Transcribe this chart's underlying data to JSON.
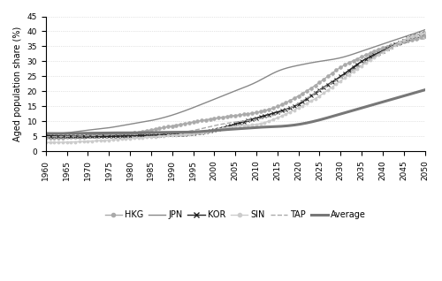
{
  "title": "",
  "ylabel": "Aged population share (%)",
  "xlabel": "",
  "ylim": [
    0,
    45
  ],
  "xlim": [
    1960,
    2050
  ],
  "xticks": [
    1960,
    1965,
    1970,
    1975,
    1980,
    1985,
    1990,
    1995,
    2000,
    2005,
    2010,
    2015,
    2020,
    2025,
    2030,
    2035,
    2040,
    2045,
    2050
  ],
  "yticks": [
    0,
    5,
    10,
    15,
    20,
    25,
    30,
    35,
    40,
    45
  ],
  "background_color": "#ffffff",
  "series": {
    "HKG": {
      "color": "#aaaaaa",
      "linestyle": "-",
      "linewidth": 1.0,
      "marker": "o",
      "markersize": 2.5,
      "data": {
        "1960": 4.5,
        "1965": 4.7,
        "1970": 5.0,
        "1975": 5.5,
        "1980": 6.0,
        "1985": 7.2,
        "1990": 8.5,
        "1995": 9.8,
        "2000": 11.0,
        "2005": 12.0,
        "2010": 13.0,
        "2015": 15.0,
        "2020": 18.5,
        "2025": 23.0,
        "2030": 28.0,
        "2035": 31.5,
        "2040": 34.5,
        "2045": 36.5,
        "2050": 38.5
      }
    },
    "JPN": {
      "color": "#888888",
      "linestyle": "-",
      "linewidth": 1.0,
      "marker": null,
      "markersize": 0,
      "data": {
        "1960": 5.8,
        "1965": 6.2,
        "1970": 7.1,
        "1975": 7.9,
        "1980": 9.1,
        "1985": 10.3,
        "1990": 12.1,
        "1995": 14.6,
        "2000": 17.4,
        "2005": 20.2,
        "2010": 23.1,
        "2015": 26.7,
        "2020": 28.7,
        "2025": 30.0,
        "2030": 31.2,
        "2035": 33.4,
        "2040": 35.8,
        "2045": 38.1,
        "2050": 40.5
      }
    },
    "KOR": {
      "color": "#222222",
      "linestyle": "-",
      "linewidth": 1.0,
      "marker": "x",
      "markersize": 3.5,
      "data": {
        "1960": 5.3,
        "1965": 5.1,
        "1970": 5.1,
        "1975": 5.0,
        "1980": 5.2,
        "1985": 5.4,
        "1990": 5.7,
        "1995": 6.0,
        "2000": 7.2,
        "2005": 9.1,
        "2010": 11.1,
        "2015": 13.1,
        "2020": 15.8,
        "2025": 20.5,
        "2030": 25.0,
        "2035": 30.0,
        "2040": 33.5,
        "2045": 37.0,
        "2050": 39.5
      }
    },
    "SIN": {
      "color": "#cccccc",
      "linestyle": "-",
      "linewidth": 1.0,
      "marker": "o",
      "markersize": 2.0,
      "data": {
        "1960": 3.0,
        "1965": 3.1,
        "1970": 3.4,
        "1975": 3.8,
        "1980": 4.3,
        "1985": 4.8,
        "1990": 5.4,
        "1995": 6.0,
        "2000": 7.1,
        "2005": 8.4,
        "2010": 9.0,
        "2015": 11.2,
        "2020": 14.5,
        "2025": 18.5,
        "2030": 23.5,
        "2035": 28.5,
        "2040": 33.0,
        "2045": 37.0,
        "2050": 39.5
      }
    },
    "TAP": {
      "color": "#aaaaaa",
      "linestyle": "--",
      "linewidth": 1.0,
      "marker": null,
      "markersize": 0,
      "data": {
        "1960": 4.9,
        "1965": 5.0,
        "1970": 5.2,
        "1975": 5.5,
        "1980": 6.0,
        "1985": 6.2,
        "1990": 6.2,
        "1995": 7.0,
        "2000": 8.6,
        "2005": 9.8,
        "2010": 10.7,
        "2015": 12.5,
        "2020": 16.1,
        "2025": 20.4,
        "2030": 24.5,
        "2035": 29.0,
        "2040": 33.2,
        "2045": 36.2,
        "2050": 37.5
      }
    },
    "Average": {
      "color": "#777777",
      "linestyle": "-",
      "linewidth": 2.2,
      "marker": null,
      "markersize": 0,
      "data": {
        "1960": 6.0,
        "1965": 6.0,
        "1970": 6.1,
        "1975": 6.2,
        "1980": 6.2,
        "1985": 6.3,
        "1990": 6.4,
        "1995": 6.5,
        "2000": 7.0,
        "2005": 7.5,
        "2010": 8.0,
        "2015": 8.3,
        "2020": 9.0,
        "2025": 10.5,
        "2030": 12.5,
        "2035": 14.5,
        "2040": 16.5,
        "2045": 18.5,
        "2050": 20.5
      }
    }
  },
  "legend_styles": {
    "HKG": {
      "color": "#aaaaaa",
      "ls": "-",
      "lw": 1.0,
      "marker": "o",
      "ms": 3
    },
    "JPN": {
      "color": "#888888",
      "ls": "-",
      "lw": 1.0,
      "marker": "None",
      "ms": 0
    },
    "KOR": {
      "color": "#222222",
      "ls": "-",
      "lw": 1.0,
      "marker": "x",
      "ms": 4
    },
    "SIN": {
      "color": "#cccccc",
      "ls": "-",
      "lw": 1.0,
      "marker": "o",
      "ms": 3
    },
    "TAP": {
      "color": "#aaaaaa",
      "ls": "--",
      "lw": 1.0,
      "marker": "None",
      "ms": 0
    },
    "Average": {
      "color": "#777777",
      "ls": "-",
      "lw": 2.2,
      "marker": "None",
      "ms": 0
    }
  }
}
